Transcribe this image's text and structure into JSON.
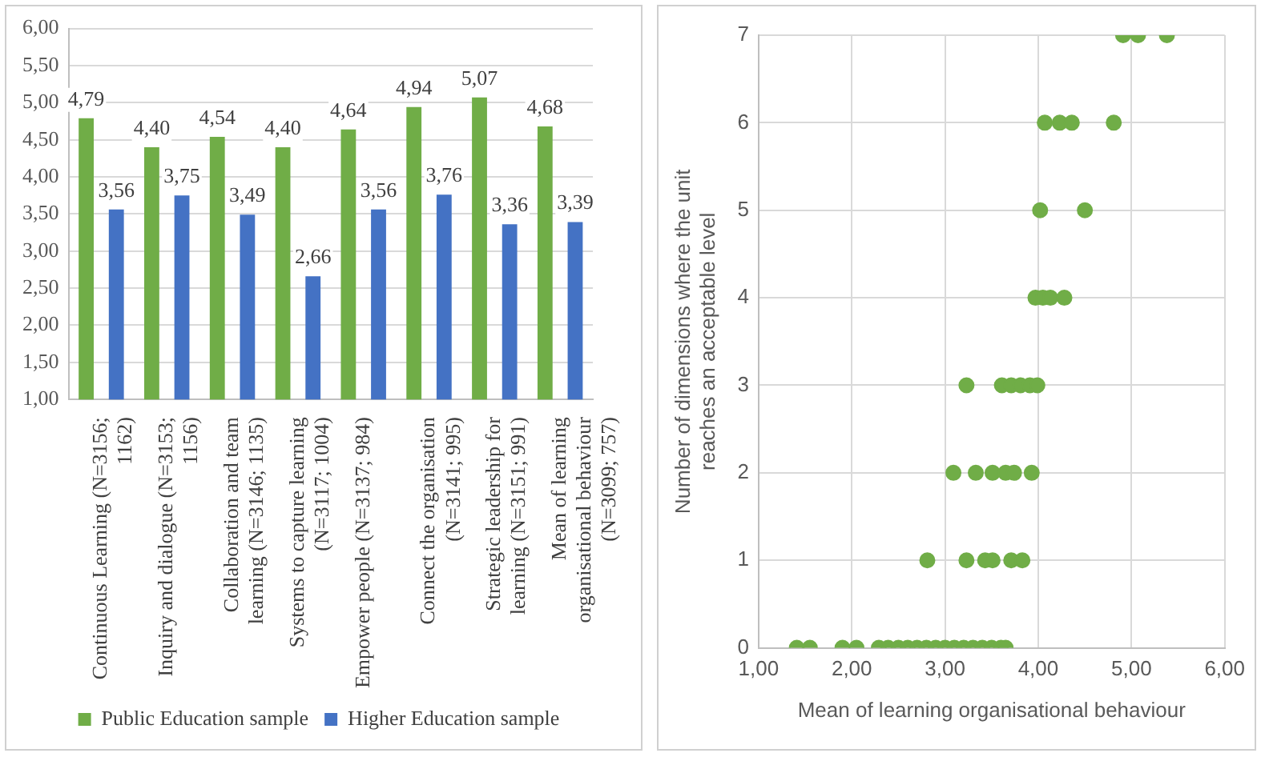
{
  "chart_data": [
    {
      "type": "bar",
      "categories": [
        "Continuous Learning (N=3156; 1162)",
        "Inquiry and dialogue (N=3153; 1156)",
        "Collaboration and team learning (N=3146; 1135)",
        "Systems to capture learning (N=3117; 1004)",
        "Empower people (N=3137; 984)",
        "Connect the organisation (N=3141; 995)",
        "Strategic leadership for learning (N=3151; 991)",
        "Mean of learning organisational behaviour (N=3099; 757)"
      ],
      "series": [
        {
          "name": "Public Education sample",
          "color": "#70ad47",
          "values": [
            4.79,
            4.4,
            4.54,
            4.4,
            4.64,
            4.94,
            5.07,
            4.68
          ],
          "value_labels": [
            "4,79",
            "4,40",
            "4,54",
            "4,40",
            "4,64",
            "4,94",
            "5,07",
            "4,68"
          ]
        },
        {
          "name": "Higher Education sample",
          "color": "#4472c4",
          "values": [
            3.56,
            3.75,
            3.49,
            2.66,
            3.56,
            3.76,
            3.36,
            3.39
          ],
          "value_labels": [
            "3,56",
            "3,75",
            "3,49",
            "2,66",
            "3,56",
            "3,76",
            "3,36",
            "3,39"
          ]
        }
      ],
      "ylim": [
        1,
        6
      ],
      "yticks": [
        {
          "value": 1,
          "label": "1,00"
        },
        {
          "value": 1.5,
          "label": "1,50"
        },
        {
          "value": 2,
          "label": "2,00"
        },
        {
          "value": 2.5,
          "label": "2,50"
        },
        {
          "value": 3,
          "label": "3,00"
        },
        {
          "value": 3.5,
          "label": "3,50"
        },
        {
          "value": 4,
          "label": "4,00"
        },
        {
          "value": 4.5,
          "label": "4,50"
        },
        {
          "value": 5,
          "label": "5,00"
        },
        {
          "value": 5.5,
          "label": "5,50"
        },
        {
          "value": 6,
          "label": "6,00"
        }
      ],
      "grid": "y",
      "legend": "bottom"
    },
    {
      "type": "scatter",
      "xlabel": "Mean of learning organisational behaviour",
      "ylabel": "Number of dimensions where the unit reaches an acceptable level",
      "series": [
        {
          "color": "#70ad47",
          "x": [
            1.41,
            1.55,
            1.9,
            2.05,
            2.29,
            2.39,
            2.5,
            2.6,
            2.7,
            2.8,
            2.9,
            3.0,
            3.1,
            3.2,
            3.3,
            3.4,
            3.5,
            3.6,
            3.65,
            2.81,
            3.23,
            3.43,
            3.51,
            3.71,
            3.83,
            3.09,
            3.33,
            3.51,
            3.65,
            3.74,
            3.93,
            3.23,
            3.61,
            3.71,
            3.81,
            3.91,
            3.99,
            3.97,
            4.05,
            4.13,
            4.28,
            4.02,
            4.5,
            4.07,
            4.23,
            4.36,
            4.81,
            4.91,
            5.07,
            5.38
          ],
          "values": [
            0,
            0,
            0,
            0,
            0,
            0,
            0,
            0,
            0,
            0,
            0,
            0,
            0,
            0,
            0,
            0,
            0,
            0,
            0,
            1,
            1,
            1,
            1,
            1,
            1,
            2,
            2,
            2,
            2,
            2,
            2,
            3,
            3,
            3,
            3,
            3,
            3,
            4,
            4,
            4,
            4,
            5,
            5,
            6,
            6,
            6,
            6,
            7,
            7,
            7
          ]
        }
      ],
      "xlim": [
        1,
        6
      ],
      "xticks": [
        {
          "value": 1,
          "label": "1,00"
        },
        {
          "value": 2,
          "label": "2,00"
        },
        {
          "value": 3,
          "label": "3,00"
        },
        {
          "value": 4,
          "label": "4,00"
        },
        {
          "value": 5,
          "label": "5,00"
        },
        {
          "value": 6,
          "label": "6,00"
        }
      ],
      "ylim": [
        0,
        7
      ],
      "yticks": [
        0,
        1,
        2,
        3,
        4,
        5,
        6,
        7
      ],
      "grid": true,
      "marker": "circle"
    }
  ]
}
